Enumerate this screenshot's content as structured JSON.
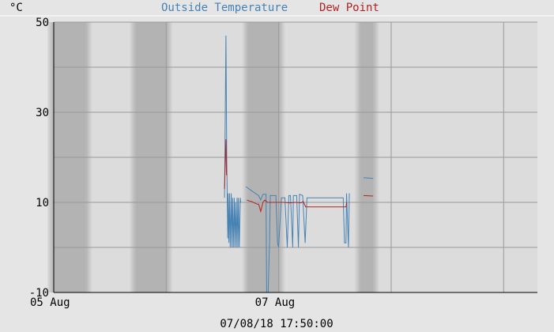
{
  "chart_data": {
    "type": "line",
    "title_series": [
      "Outside Temperature",
      "Dew Point"
    ],
    "ylabel": "°C",
    "ylim": [
      -10,
      50
    ],
    "ytick_values": [
      -10,
      10,
      30,
      50
    ],
    "ytick_labels": [
      "-10",
      "10",
      "30",
      "50"
    ],
    "xlim": [
      0,
      4.3
    ],
    "xtick_values": [
      0,
      2
    ],
    "xtick_labels": [
      "05 Aug",
      "07 Aug"
    ],
    "xlabel": "07/08/18 17:50:00",
    "grid": true,
    "series": [
      {
        "name": "Outside Temperature",
        "color": "#4682b4",
        "segments": [
          [
            [
              1.518,
              11
            ],
            [
              1.531,
              47
            ],
            [
              1.538,
              20
            ],
            [
              1.547,
              2
            ],
            [
              1.551,
              12
            ],
            [
              1.557,
              1
            ],
            [
              1.563,
              12
            ],
            [
              1.569,
              0
            ],
            [
              1.578,
              12
            ],
            [
              1.583,
              0
            ],
            [
              1.59,
              11
            ],
            [
              1.596,
              0
            ],
            [
              1.605,
              11
            ],
            [
              1.61,
              0
            ],
            [
              1.616,
              10
            ],
            [
              1.624,
              0
            ],
            [
              1.63,
              11
            ],
            [
              1.637,
              0
            ],
            [
              1.642,
              11
            ],
            [
              1.65,
              0
            ],
            [
              1.659,
              11
            ],
            [
              1.663,
              10
            ]
          ],
          [
            [
              1.709,
              13.5
            ],
            [
              1.764,
              12.5
            ],
            [
              1.822,
              11.5
            ],
            [
              1.84,
              10.5
            ],
            [
              1.86,
              11.8
            ],
            [
              1.887,
              11.8
            ],
            [
              1.893,
              -10
            ],
            [
              1.906,
              -10
            ],
            [
              1.918,
              1
            ],
            [
              1.925,
              11.5
            ],
            [
              1.975,
              11.5
            ],
            [
              1.99,
              1
            ],
            [
              1.999,
              0
            ],
            [
              2.024,
              11
            ],
            [
              2.055,
              11
            ],
            [
              2.076,
              0
            ],
            [
              2.09,
              11.5
            ],
            [
              2.104,
              11.5
            ],
            [
              2.125,
              0
            ],
            [
              2.13,
              11.5
            ],
            [
              2.16,
              11.5
            ],
            [
              2.175,
              0
            ],
            [
              2.185,
              11.8
            ],
            [
              2.213,
              11.5
            ],
            [
              2.235,
              1
            ],
            [
              2.251,
              11
            ],
            [
              2.574,
              11
            ],
            [
              2.585,
              1
            ],
            [
              2.598,
              1
            ],
            [
              2.603,
              12
            ],
            [
              2.62,
              0
            ],
            [
              2.628,
              12
            ]
          ],
          [
            [
              2.755,
              15.5
            ],
            [
              2.84,
              15.3
            ]
          ]
        ]
      },
      {
        "name": "Dew Point",
        "color": "#b22222",
        "segments": [
          [
            [
              1.518,
              13
            ],
            [
              1.526,
              20
            ],
            [
              1.531,
              24
            ],
            [
              1.536,
              16
            ]
          ],
          [
            [
              1.718,
              10.5
            ],
            [
              1.74,
              10.3
            ],
            [
              1.757,
              10.2
            ],
            [
              1.79,
              9.8
            ],
            [
              1.81,
              9.6
            ],
            [
              1.822,
              9.6
            ],
            [
              1.84,
              8
            ],
            [
              1.86,
              10
            ],
            [
              1.875,
              10.5
            ],
            [
              1.9,
              10
            ],
            [
              1.95,
              10
            ],
            [
              1.99,
              10
            ],
            [
              2.04,
              10
            ],
            [
              2.1,
              9.9
            ],
            [
              2.15,
              10
            ],
            [
              2.2,
              9.9
            ],
            [
              2.218,
              10.2
            ],
            [
              2.24,
              9
            ],
            [
              2.598,
              9
            ],
            [
              2.605,
              10
            ]
          ],
          [
            [
              2.755,
              11.5
            ],
            [
              2.84,
              11.4
            ]
          ]
        ]
      }
    ],
    "x_bands": [
      [
        0,
        0.287
      ],
      [
        0.729,
        1.003
      ],
      [
        1.729,
        2.003
      ],
      [
        2.729,
        2.84
      ]
    ],
    "band_colors": [
      "#b3b3b3",
      "#dcdcdc"
    ],
    "grid_color": "#999999",
    "background_color": "#e5e5e5"
  }
}
